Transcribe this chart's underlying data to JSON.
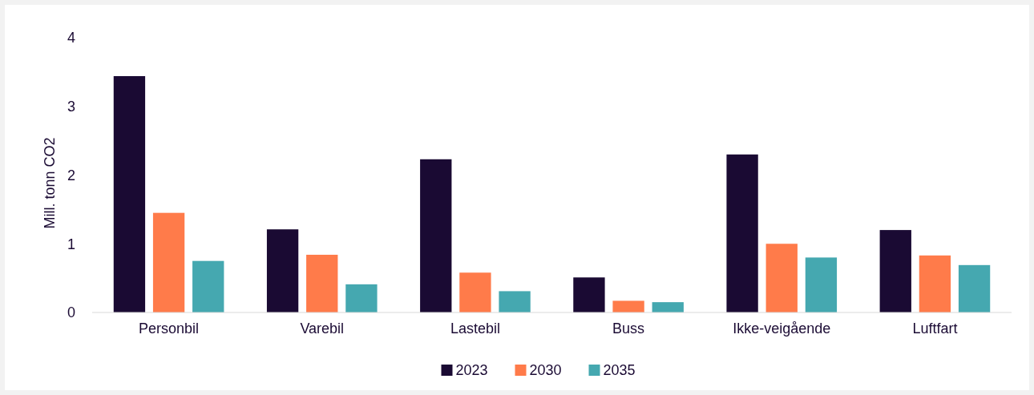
{
  "chart_data": {
    "type": "bar",
    "ylabel": "Mill. tonn CO2",
    "categories": [
      "Personbil",
      "Varebil",
      "Lastebil",
      "Buss",
      "Ikke-veigående",
      "Luftfart"
    ],
    "series": [
      {
        "name": "2023",
        "color": "#1a0a33",
        "values": [
          3.44,
          1.21,
          2.23,
          0.51,
          2.3,
          1.2
        ]
      },
      {
        "name": "2030",
        "color": "#ff7b4a",
        "values": [
          1.45,
          0.84,
          0.58,
          0.17,
          1.0,
          0.83
        ]
      },
      {
        "name": "2035",
        "color": "#45a8b0",
        "values": [
          0.75,
          0.41,
          0.31,
          0.15,
          0.8,
          0.69
        ]
      }
    ],
    "ylim": [
      0,
      4
    ],
    "yticks": [
      0,
      1,
      2,
      3,
      4
    ],
    "grid": false,
    "legend": "bottom"
  }
}
